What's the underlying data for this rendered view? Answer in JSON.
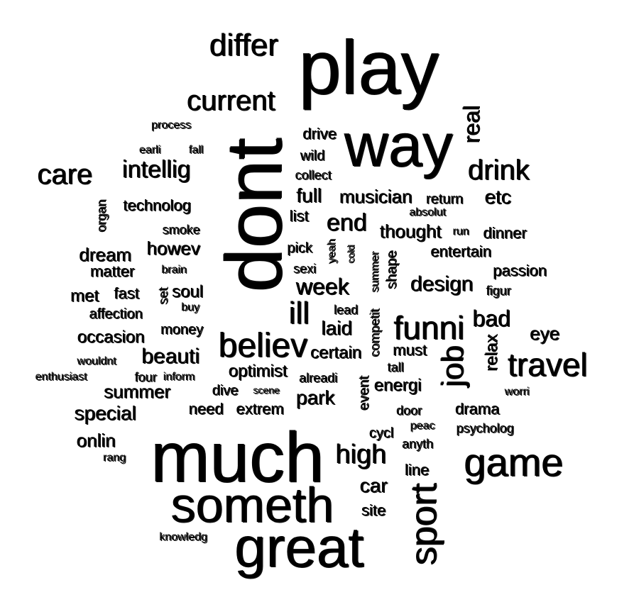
{
  "cloud": {
    "background": "#ffffff",
    "text_color": "#000000",
    "words": [
      "dont",
      "play",
      "much",
      "way",
      "great",
      "someth",
      "game",
      "sport",
      "believ",
      "funni",
      "travel",
      "job",
      "differ",
      "current",
      "care",
      "drink",
      "intellig",
      "week",
      "ill",
      "design",
      "end",
      "high",
      "real",
      "bad",
      "beauti",
      "full",
      "musician",
      "etc",
      "laid",
      "occasion",
      "special",
      "summer",
      "dream",
      "howev",
      "eye",
      "certain",
      "optimist",
      "thought",
      "energi",
      "park",
      "car",
      "entertain",
      "passion",
      "dinner",
      "must",
      "relax",
      "drama",
      "onlin",
      "line",
      "site",
      "technolog",
      "soul",
      "met",
      "fast",
      "affection",
      "matter",
      "money",
      "need",
      "extrem",
      "dive",
      "list",
      "pick",
      "sexi",
      "drive",
      "wild",
      "collect",
      "return",
      "absolut",
      "smoke",
      "organ",
      "brain",
      "set",
      "buy",
      "lead",
      "cold",
      "yeah",
      "summer",
      "shape",
      "competit",
      "tall",
      "alreadi",
      "event",
      "door",
      "peac",
      "psycholog",
      "cycl",
      "anyth",
      "worri",
      "figur",
      "run",
      "process",
      "earli",
      "fall",
      "wouldnt",
      "enthusiast",
      "four",
      "inform",
      "scene",
      "rang",
      "knowledg"
    ]
  }
}
